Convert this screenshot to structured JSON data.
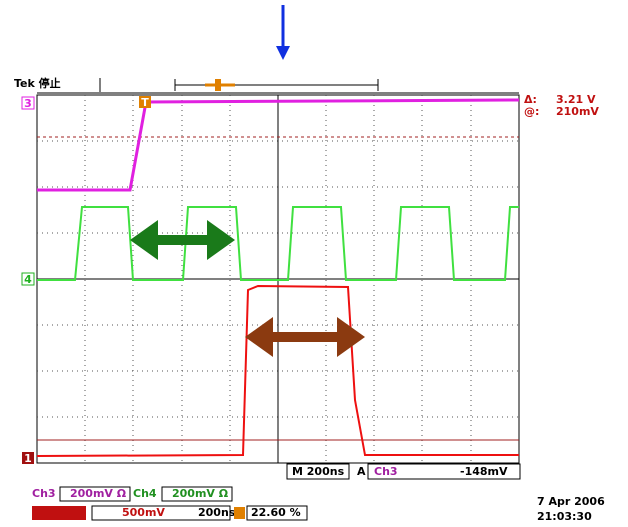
{
  "screen": {
    "status": "Tek 停止",
    "markers": {
      "ch3": "3",
      "ch4": "4",
      "ch1": "1",
      "trigger": "T"
    },
    "cursor": {
      "delta_label": "Δ:",
      "delta_value": "3.21 V",
      "at_label": "@:",
      "at_value": "210mV"
    },
    "timebase": {
      "horizontal": "M 200ns",
      "trigger_mode": "A",
      "trigger_source": "Ch3",
      "trigger_level": "-148mV"
    },
    "channels": [
      {
        "name": "Ch3",
        "scale": "200mV Ω"
      },
      {
        "name": "Ch4",
        "scale": "200mV Ω"
      },
      {
        "scale": "500mV"
      }
    ],
    "record": {
      "time": "200ns",
      "position": "22.60 %"
    },
    "date": "7 Apr 2006",
    "clock": "21:03:30"
  }
}
